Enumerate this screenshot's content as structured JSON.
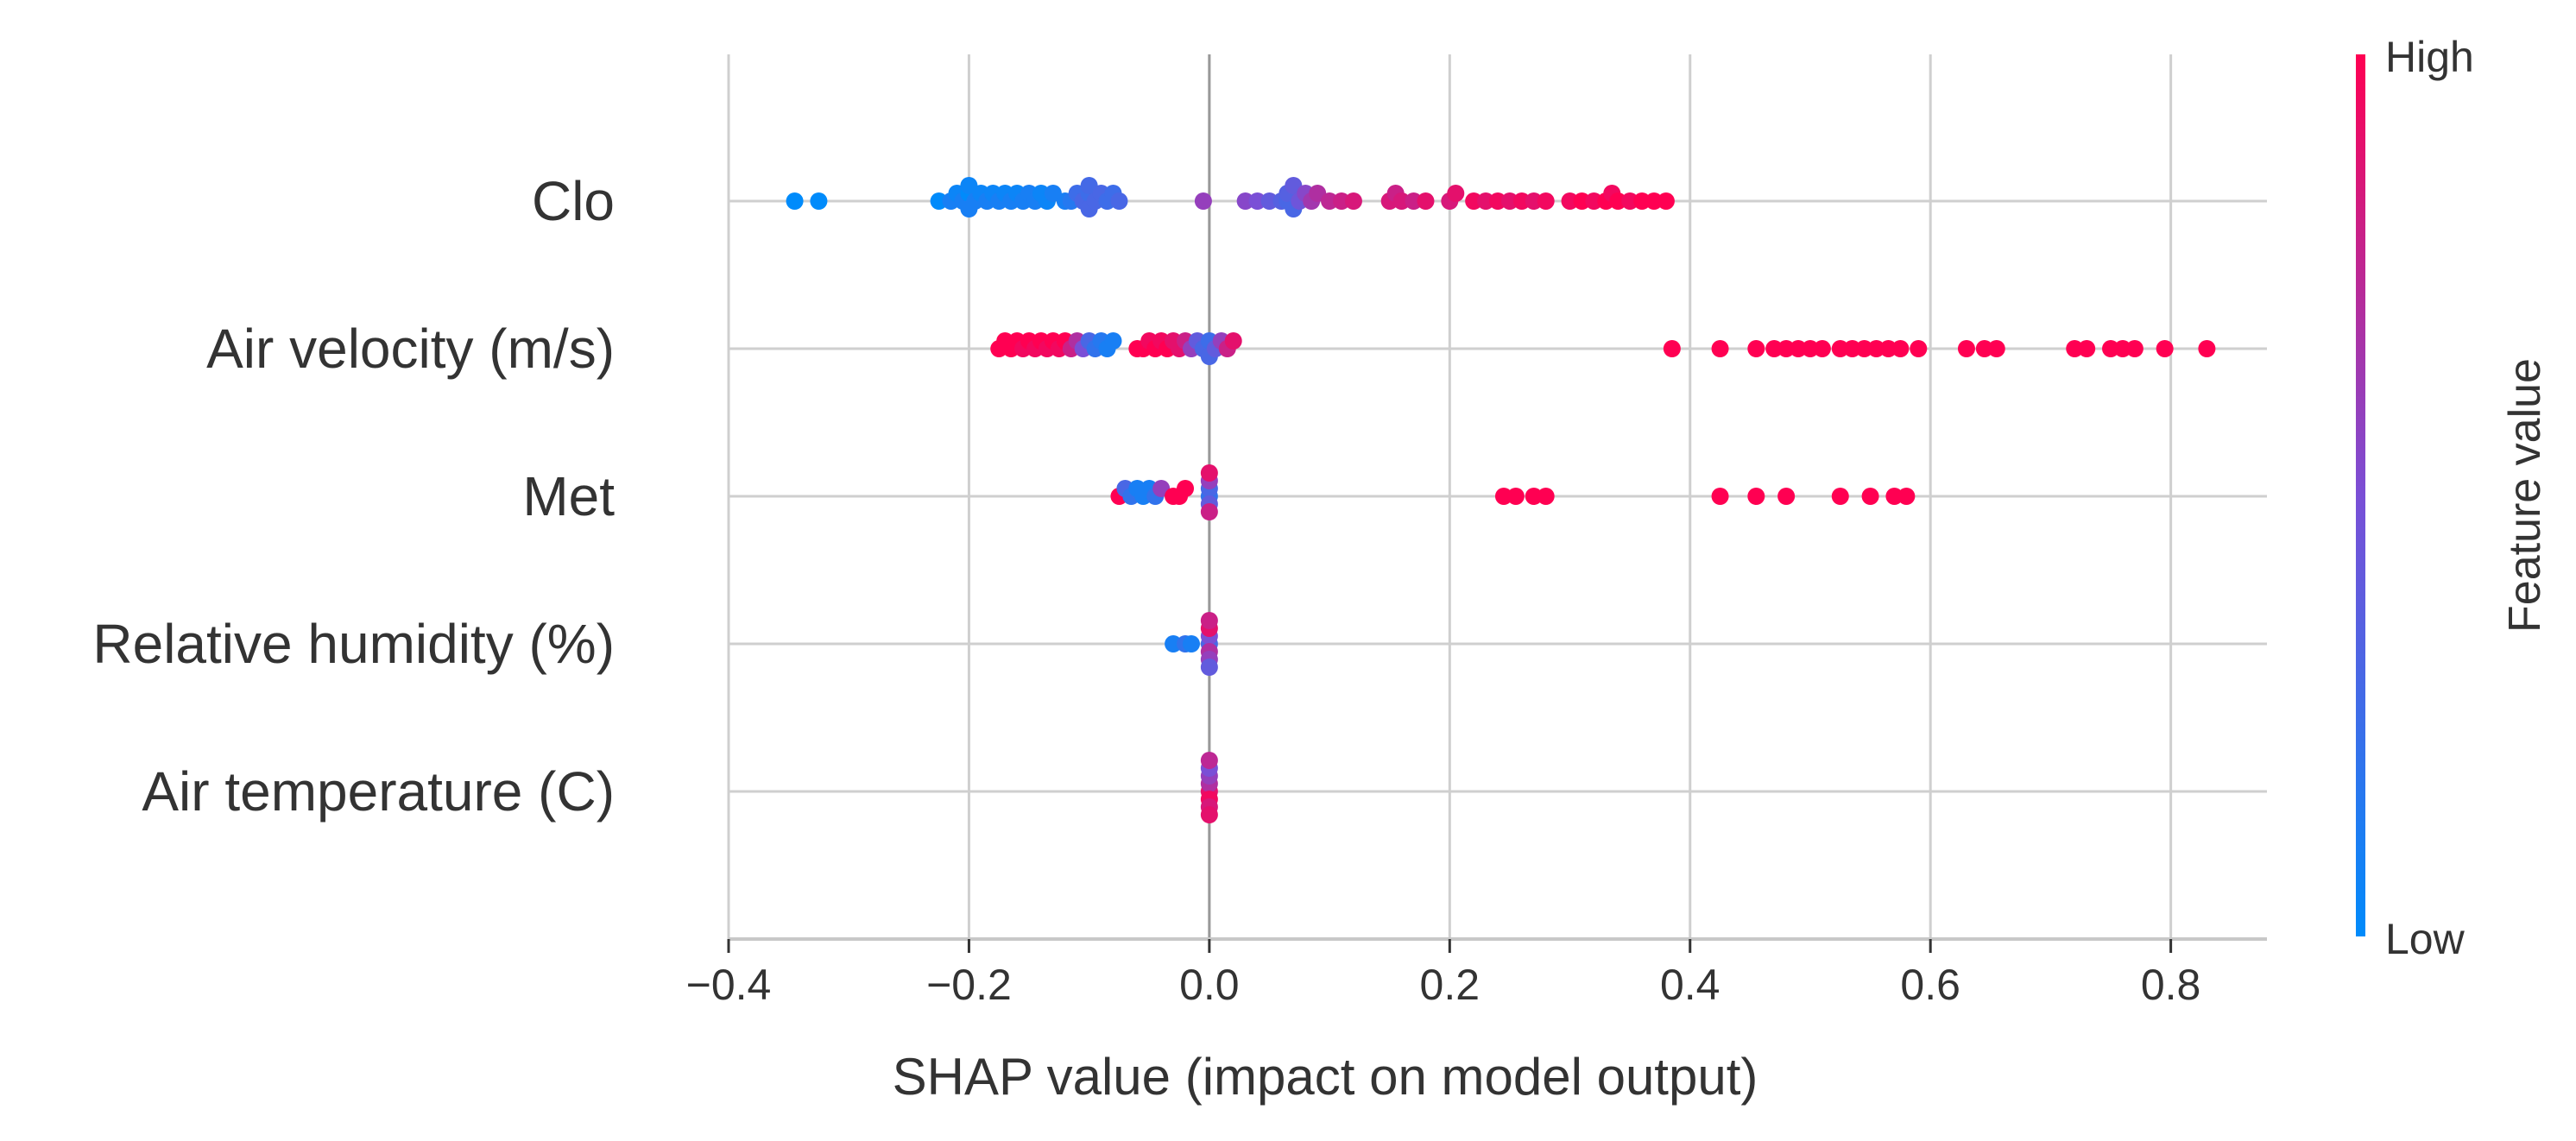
{
  "chart_data": {
    "type": "scatter",
    "subtype": "shap-beeswarm",
    "title": "",
    "xlabel": "SHAP value (impact on model output)",
    "ylabel": "",
    "xlim": [
      -0.4,
      0.88
    ],
    "xticks": [
      -0.4,
      -0.2,
      0.0,
      0.2,
      0.4,
      0.6,
      0.8
    ],
    "xtick_labels": [
      "−0.4",
      "−0.2",
      "0.0",
      "0.2",
      "0.4",
      "0.6",
      "0.8"
    ],
    "grid": true,
    "features": [
      "Clo",
      "Air velocity (m/s)",
      "Met",
      "Relative humidity (%)",
      "Air temperature (C)"
    ],
    "series": [
      {
        "name": "Clo",
        "points": [
          [
            -0.345,
            0.0
          ],
          [
            -0.325,
            0.0
          ],
          [
            -0.225,
            0.0
          ],
          [
            -0.215,
            0.1
          ],
          [
            -0.21,
            0.05
          ],
          [
            -0.205,
            0.1
          ],
          [
            -0.2,
            0.0
          ],
          [
            -0.2,
            0.1
          ],
          [
            -0.2,
            0.05
          ],
          [
            -0.195,
            0.1
          ],
          [
            -0.19,
            0.05
          ],
          [
            -0.185,
            0.1
          ],
          [
            -0.18,
            0.05
          ],
          [
            -0.175,
            0.1
          ],
          [
            -0.17,
            0.05
          ],
          [
            -0.165,
            0.1
          ],
          [
            -0.16,
            0.05
          ],
          [
            -0.155,
            0.1
          ],
          [
            -0.15,
            0.1
          ],
          [
            -0.145,
            0.1
          ],
          [
            -0.14,
            0.05
          ],
          [
            -0.135,
            0.05
          ],
          [
            -0.13,
            0.1
          ],
          [
            -0.12,
            0.1
          ],
          [
            -0.115,
            0.15
          ],
          [
            -0.11,
            0.25
          ],
          [
            -0.105,
            0.3
          ],
          [
            -0.1,
            0.25
          ],
          [
            -0.1,
            0.3
          ],
          [
            -0.1,
            0.28
          ],
          [
            -0.095,
            0.3
          ],
          [
            -0.09,
            0.3
          ],
          [
            -0.085,
            0.25
          ],
          [
            -0.08,
            0.25
          ],
          [
            -0.075,
            0.3
          ],
          [
            -0.005,
            0.6
          ],
          [
            0.03,
            0.55
          ],
          [
            0.04,
            0.5
          ],
          [
            0.05,
            0.4
          ],
          [
            0.06,
            0.35
          ],
          [
            0.065,
            0.3
          ],
          [
            0.065,
            0.35
          ],
          [
            0.07,
            0.3
          ],
          [
            0.07,
            0.4
          ],
          [
            0.075,
            0.45
          ],
          [
            0.08,
            0.55
          ],
          [
            0.085,
            0.65
          ],
          [
            0.09,
            0.7
          ],
          [
            0.1,
            0.75
          ],
          [
            0.11,
            0.8
          ],
          [
            0.12,
            0.85
          ],
          [
            0.15,
            0.85
          ],
          [
            0.155,
            0.8
          ],
          [
            0.16,
            0.85
          ],
          [
            0.17,
            0.8
          ],
          [
            0.18,
            0.9
          ],
          [
            0.2,
            0.85
          ],
          [
            0.205,
            0.9
          ],
          [
            0.22,
            0.95
          ],
          [
            0.23,
            0.9
          ],
          [
            0.24,
            0.95
          ],
          [
            0.25,
            0.9
          ],
          [
            0.26,
            0.95
          ],
          [
            0.27,
            0.9
          ],
          [
            0.28,
            0.95
          ],
          [
            0.3,
            0.95
          ],
          [
            0.31,
            1.0
          ],
          [
            0.32,
            0.95
          ],
          [
            0.33,
            1.0
          ],
          [
            0.335,
            0.95
          ],
          [
            0.34,
            1.0
          ],
          [
            0.35,
            0.95
          ],
          [
            0.36,
            1.0
          ],
          [
            0.37,
            1.0
          ],
          [
            0.38,
            1.0
          ]
        ]
      },
      {
        "name": "Air velocity (m/s)",
        "points": [
          [
            -0.175,
            1.0
          ],
          [
            -0.17,
            1.0
          ],
          [
            -0.165,
            1.0
          ],
          [
            -0.16,
            1.0
          ],
          [
            -0.155,
            0.95
          ],
          [
            -0.15,
            1.0
          ],
          [
            -0.145,
            0.95
          ],
          [
            -0.14,
            1.0
          ],
          [
            -0.135,
            0.95
          ],
          [
            -0.13,
            1.0
          ],
          [
            -0.125,
            0.95
          ],
          [
            -0.12,
            1.0
          ],
          [
            -0.115,
            0.8
          ],
          [
            -0.11,
            0.7
          ],
          [
            -0.105,
            0.5
          ],
          [
            -0.1,
            0.3
          ],
          [
            -0.095,
            0.2
          ],
          [
            -0.09,
            0.15
          ],
          [
            -0.085,
            0.1
          ],
          [
            -0.08,
            0.1
          ],
          [
            -0.06,
            1.0
          ],
          [
            -0.055,
            1.0
          ],
          [
            -0.05,
            0.95
          ],
          [
            -0.045,
            1.0
          ],
          [
            -0.04,
            0.95
          ],
          [
            -0.035,
            1.0
          ],
          [
            -0.03,
            0.9
          ],
          [
            -0.025,
            0.9
          ],
          [
            -0.02,
            0.8
          ],
          [
            -0.015,
            0.6
          ],
          [
            -0.01,
            0.4
          ],
          [
            -0.005,
            0.3
          ],
          [
            0.0,
            0.25
          ],
          [
            0.0,
            0.3
          ],
          [
            0.005,
            0.4
          ],
          [
            0.01,
            0.6
          ],
          [
            0.015,
            0.8
          ],
          [
            0.02,
            0.9
          ],
          [
            0.385,
            1.0
          ],
          [
            0.425,
            1.0
          ],
          [
            0.455,
            1.0
          ],
          [
            0.47,
            1.0
          ],
          [
            0.48,
            1.0
          ],
          [
            0.49,
            1.0
          ],
          [
            0.5,
            1.0
          ],
          [
            0.51,
            1.0
          ],
          [
            0.525,
            1.0
          ],
          [
            0.535,
            1.0
          ],
          [
            0.545,
            1.0
          ],
          [
            0.555,
            1.0
          ],
          [
            0.565,
            1.0
          ],
          [
            0.575,
            1.0
          ],
          [
            0.59,
            1.0
          ],
          [
            0.63,
            1.0
          ],
          [
            0.645,
            1.0
          ],
          [
            0.655,
            1.0
          ],
          [
            0.72,
            1.0
          ],
          [
            0.73,
            1.0
          ],
          [
            0.75,
            1.0
          ],
          [
            0.76,
            1.0
          ],
          [
            0.77,
            1.0
          ],
          [
            0.795,
            1.0
          ],
          [
            0.83,
            1.0
          ]
        ]
      },
      {
        "name": "Met",
        "points": [
          [
            -0.075,
            1.0
          ],
          [
            -0.07,
            0.3
          ],
          [
            -0.065,
            0.2
          ],
          [
            -0.06,
            0.1
          ],
          [
            -0.055,
            0.1
          ],
          [
            -0.05,
            0.1
          ],
          [
            -0.045,
            0.2
          ],
          [
            -0.04,
            0.6
          ],
          [
            -0.03,
            1.0
          ],
          [
            -0.025,
            1.0
          ],
          [
            -0.02,
            1.0
          ],
          [
            0.0,
            0.2
          ],
          [
            0.0,
            0.3
          ],
          [
            0.0,
            0.4
          ],
          [
            0.0,
            0.6
          ],
          [
            0.0,
            0.8
          ],
          [
            0.0,
            0.9
          ],
          [
            0.245,
            1.0
          ],
          [
            0.255,
            1.0
          ],
          [
            0.27,
            1.0
          ],
          [
            0.28,
            1.0
          ],
          [
            0.425,
            1.0
          ],
          [
            0.455,
            1.0
          ],
          [
            0.48,
            1.0
          ],
          [
            0.525,
            1.0
          ],
          [
            0.55,
            1.0
          ],
          [
            0.57,
            1.0
          ],
          [
            0.58,
            1.0
          ]
        ]
      },
      {
        "name": "Relative humidity (%)",
        "points": [
          [
            -0.03,
            0.1
          ],
          [
            -0.02,
            0.2
          ],
          [
            -0.015,
            0.1
          ],
          [
            0.0,
            0.3
          ],
          [
            0.0,
            0.5
          ],
          [
            0.0,
            0.7
          ],
          [
            0.0,
            0.9
          ],
          [
            0.0,
            0.6
          ],
          [
            0.0,
            0.8
          ],
          [
            0.0,
            0.4
          ]
        ]
      },
      {
        "name": "Air temperature (C)",
        "points": [
          [
            0.0,
            0.9
          ],
          [
            0.0,
            0.7
          ],
          [
            0.0,
            0.95
          ],
          [
            0.0,
            0.6
          ],
          [
            0.0,
            0.85
          ],
          [
            0.0,
            0.5
          ],
          [
            0.0,
            0.9
          ],
          [
            0.0,
            0.75
          ]
        ]
      }
    ],
    "colorbar": {
      "label": "Feature value",
      "high_label": "High",
      "low_label": "Low",
      "low_color": "#008bfb",
      "high_color": "#ff0052"
    }
  }
}
